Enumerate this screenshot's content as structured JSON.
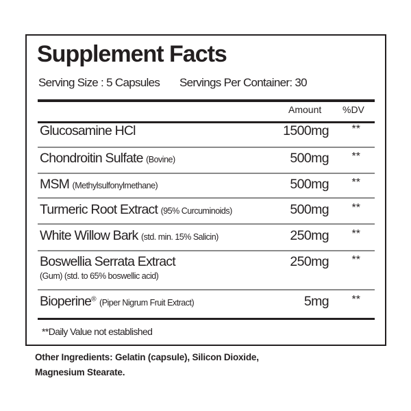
{
  "title": "Supplement Facts",
  "serving_size": "Serving Size : 5 Capsules",
  "servings_per_container": "Servings Per Container: 30",
  "headers": {
    "amount": "Amount",
    "dv": "%DV"
  },
  "rows": [
    {
      "name": "Glucosamine HCl",
      "note": "",
      "amount": "1500mg",
      "dv": "**"
    },
    {
      "name": "Chondroitin Sulfate",
      "note": "(Bovine)",
      "amount": "500mg",
      "dv": "**"
    },
    {
      "name": "MSM",
      "note": "(Methylsulfonylmethane)",
      "amount": "500mg",
      "dv": "**"
    },
    {
      "name": "Turmeric Root Extract",
      "note": "(95% Curcuminoids)",
      "amount": "500mg",
      "dv": "**"
    },
    {
      "name": "White Willow Bark",
      "note": "(std. min. 15% Salicin)",
      "amount": "250mg",
      "dv": "**"
    },
    {
      "name": "Boswellia Serrata Extract",
      "note": "(Gum) (std. to 65% boswellic acid)",
      "amount": "250mg",
      "dv": "**"
    },
    {
      "name": "Bioperine",
      "mark": "®",
      "note": "(Piper Nigrum Fruit Extract)",
      "amount": "5mg",
      "dv": "**"
    }
  ],
  "footnote": "**Daily Value not established",
  "other_ingredients": {
    "line1": "Other Ingredients: Gelatin (capsule), Silicon Dioxide,",
    "line2": "Magnesium Stearate."
  }
}
